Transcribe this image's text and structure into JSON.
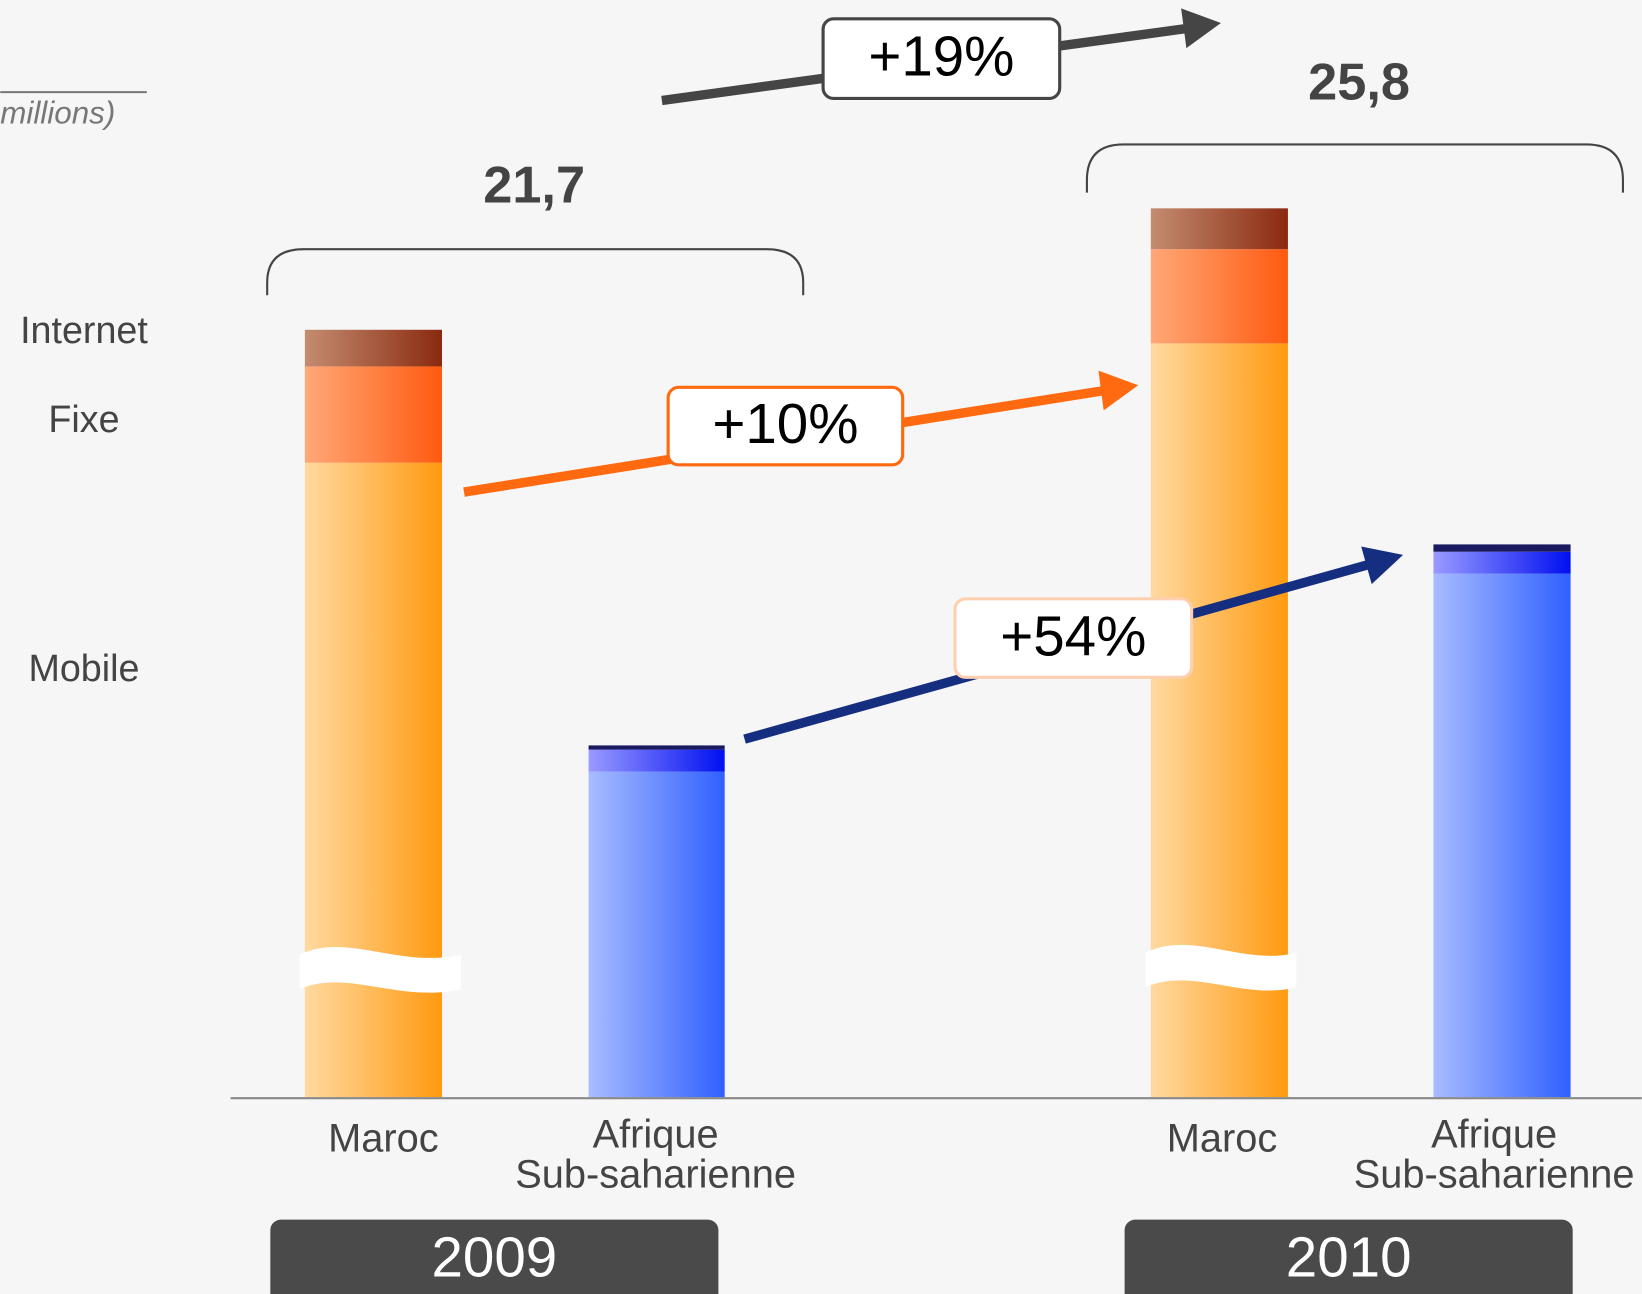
{
  "unit_note": "millions)",
  "legend": [
    "Internet",
    "Fixe",
    "Mobile"
  ],
  "groups": [
    {
      "year": "2009",
      "total": "21,7",
      "categories": [
        "Maroc",
        [
          "Afrique",
          "Sub-saharienne"
        ]
      ]
    },
    {
      "year": "2010",
      "total": "25,8",
      "categories": [
        "Maroc",
        [
          "Afrique",
          "Sub-saharienne"
        ]
      ]
    }
  ],
  "growth": {
    "total": "+19%",
    "maroc": "+10%",
    "afrique": "+54%"
  }
}
